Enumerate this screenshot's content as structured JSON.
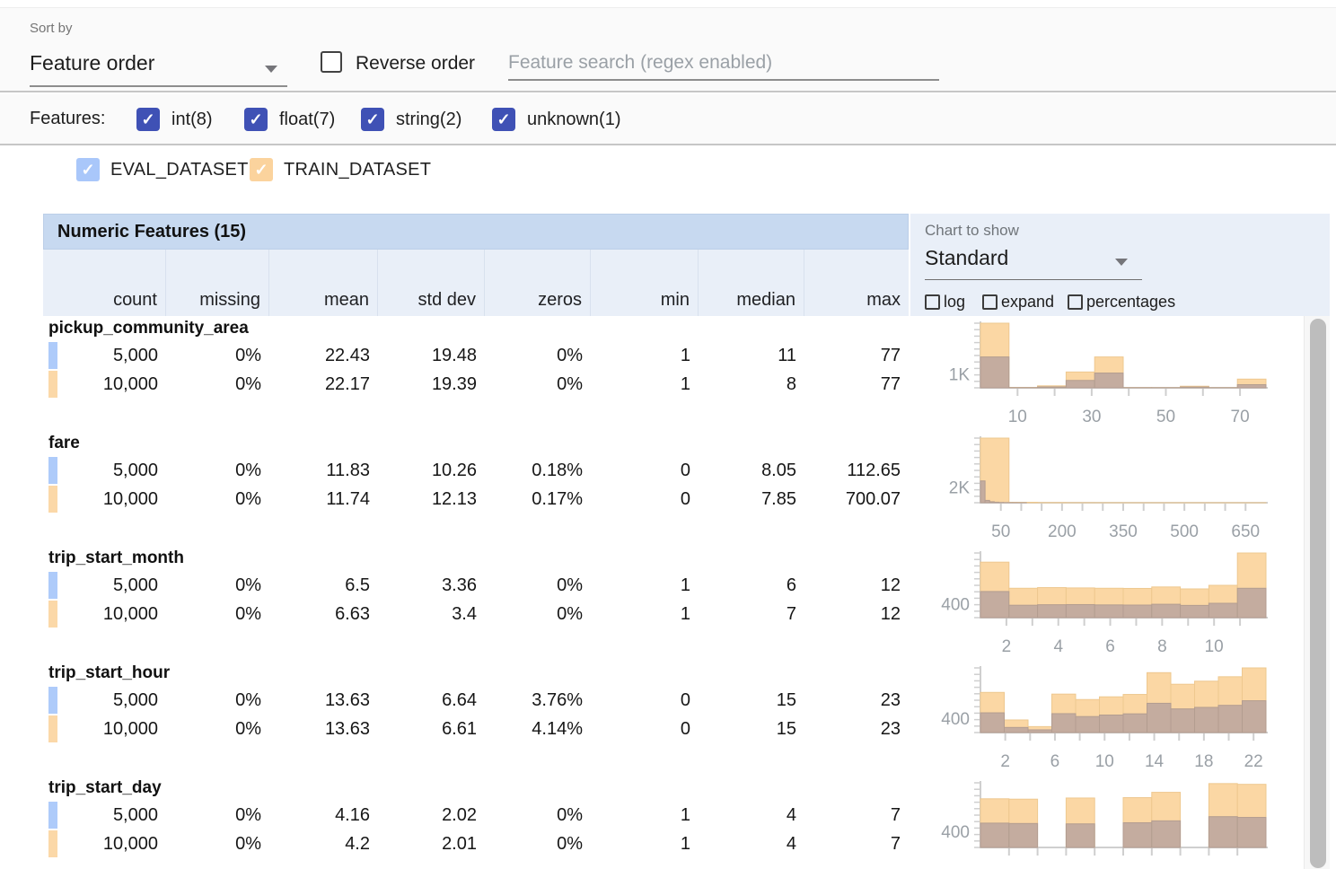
{
  "toolbar": {
    "sort_by_label": "Sort by",
    "sort_by_value": "Feature order",
    "reverse_order_label": "Reverse order",
    "search_placeholder": "Feature search (regex enabled)"
  },
  "features_filter": {
    "label": "Features:",
    "items": [
      {
        "label": "int(8)",
        "checked": true
      },
      {
        "label": "float(7)",
        "checked": true
      },
      {
        "label": "string(2)",
        "checked": true
      },
      {
        "label": "unknown(1)",
        "checked": true
      }
    ],
    "checkbox_color": "#3f51b5"
  },
  "datasets": [
    {
      "name": "EVAL_DATASET",
      "checked": true,
      "color": "#a9c7fa",
      "marker_color": "#aecbfa"
    },
    {
      "name": "TRAIN_DATASET",
      "checked": true,
      "color": "#fbd39d",
      "marker_color": "#fbd8a8"
    }
  ],
  "table": {
    "title": "Numeric Features (15)",
    "columns": [
      "count",
      "missing",
      "mean",
      "std dev",
      "zeros",
      "min",
      "median",
      "max"
    ],
    "chart_controls": {
      "label": "Chart to show",
      "selected": "Standard",
      "checkboxes": [
        {
          "label": "log",
          "checked": false
        },
        {
          "label": "expand",
          "checked": false
        },
        {
          "label": "percentages",
          "checked": false
        }
      ]
    },
    "features": [
      {
        "name": "pickup_community_area",
        "rows": [
          {
            "dataset": "EVAL_DATASET",
            "values": [
              "5,000",
              "0%",
              "22.43",
              "19.48",
              "0%",
              "1",
              "11",
              "77"
            ]
          },
          {
            "dataset": "TRAIN_DATASET",
            "values": [
              "10,000",
              "0%",
              "22.17",
              "19.39",
              "0%",
              "1",
              "8",
              "77"
            ]
          }
        ]
      },
      {
        "name": "fare",
        "rows": [
          {
            "dataset": "EVAL_DATASET",
            "values": [
              "5,000",
              "0%",
              "11.83",
              "10.26",
              "0.18%",
              "0",
              "8.05",
              "112.65"
            ]
          },
          {
            "dataset": "TRAIN_DATASET",
            "values": [
              "10,000",
              "0%",
              "11.74",
              "12.13",
              "0.17%",
              "0",
              "7.85",
              "700.07"
            ]
          }
        ]
      },
      {
        "name": "trip_start_month",
        "rows": [
          {
            "dataset": "EVAL_DATASET",
            "values": [
              "5,000",
              "0%",
              "6.5",
              "3.36",
              "0%",
              "1",
              "6",
              "12"
            ]
          },
          {
            "dataset": "TRAIN_DATASET",
            "values": [
              "10,000",
              "0%",
              "6.63",
              "3.4",
              "0%",
              "1",
              "7",
              "12"
            ]
          }
        ]
      },
      {
        "name": "trip_start_hour",
        "rows": [
          {
            "dataset": "EVAL_DATASET",
            "values": [
              "5,000",
              "0%",
              "13.63",
              "6.64",
              "3.76%",
              "0",
              "15",
              "23"
            ]
          },
          {
            "dataset": "TRAIN_DATASET",
            "values": [
              "10,000",
              "0%",
              "13.63",
              "6.61",
              "4.14%",
              "0",
              "15",
              "23"
            ]
          }
        ]
      },
      {
        "name": "trip_start_day",
        "rows": [
          {
            "dataset": "EVAL_DATASET",
            "values": [
              "5,000",
              "0%",
              "4.16",
              "2.02",
              "0%",
              "1",
              "4",
              "7"
            ]
          },
          {
            "dataset": "TRAIN_DATASET",
            "values": [
              "10,000",
              "0%",
              "4.2",
              "2.01",
              "0%",
              "1",
              "4",
              "7"
            ]
          }
        ]
      }
    ]
  },
  "chart_data": [
    {
      "type": "histogram",
      "feature": "pickup_community_area",
      "x_domain": [
        0,
        77
      ],
      "y_max": 4900,
      "y_axis_label": {
        "text": "1K",
        "value": 1000
      },
      "x_ticks_minor": [
        10,
        20,
        30,
        40,
        50,
        60,
        70
      ],
      "x_ticks_labeled": [
        10,
        30,
        50,
        70
      ],
      "series": [
        {
          "name": "TRAIN_DATASET",
          "color": "#fbd7a4",
          "stroke": "#eec88f",
          "bin_start": 0,
          "bin_width": 7.7,
          "values": [
            4900,
            30,
            150,
            1200,
            2340,
            20,
            15,
            120,
            15,
            660
          ]
        },
        {
          "name": "EVAL_DATASET",
          "color": "#c4ac9f",
          "stroke": "#b39d90",
          "bin_start": 0,
          "bin_width": 7.7,
          "values": [
            2340,
            15,
            70,
            560,
            1120,
            10,
            8,
            60,
            8,
            240
          ]
        }
      ]
    },
    {
      "type": "histogram",
      "feature": "fare",
      "x_domain": [
        0,
        700
      ],
      "y_max": 8600,
      "y_axis_label": {
        "text": "2K",
        "value": 2000
      },
      "x_ticks_minor": [
        50,
        100,
        150,
        200,
        250,
        300,
        350,
        400,
        450,
        500,
        550,
        600,
        650
      ],
      "x_ticks_labeled": [
        50,
        200,
        350,
        500,
        650
      ],
      "series": [
        {
          "name": "TRAIN_DATASET",
          "color": "#fbd7a4",
          "stroke": "#eec88f",
          "bin_start": 0,
          "bin_width": 70,
          "values": [
            8600,
            60,
            25,
            12,
            8,
            5,
            4,
            3,
            3,
            2
          ]
        },
        {
          "name": "EVAL_DATASET",
          "color": "#c4ac9f",
          "stroke": "#b39d90",
          "bin_start": 0,
          "bin_width": 11.265,
          "values": [
            2900,
            310,
            130,
            70,
            40,
            25,
            15,
            10,
            6,
            4
          ]
        }
      ]
    },
    {
      "type": "histogram",
      "feature": "trip_start_month",
      "x_domain": [
        1,
        12
      ],
      "y_max": 1980,
      "y_axis_label": {
        "text": "400",
        "value": 400
      },
      "x_ticks_minor": [
        2,
        3,
        4,
        5,
        6,
        7,
        8,
        9,
        10,
        11
      ],
      "x_ticks_labeled": [
        2,
        4,
        6,
        8,
        10
      ],
      "series": [
        {
          "name": "TRAIN_DATASET",
          "color": "#fbd7a4",
          "stroke": "#eec88f",
          "bin_start": 1,
          "bin_width": 1.1,
          "values": [
            1700,
            900,
            920,
            910,
            900,
            895,
            940,
            880,
            990,
            1980
          ]
        },
        {
          "name": "EVAL_DATASET",
          "color": "#c4ac9f",
          "stroke": "#b39d90",
          "bin_start": 1,
          "bin_width": 1.1,
          "values": [
            800,
            380,
            395,
            400,
            390,
            385,
            410,
            375,
            440,
            900
          ]
        }
      ]
    },
    {
      "type": "histogram",
      "feature": "trip_start_hour",
      "x_domain": [
        0,
        23
      ],
      "y_max": 1900,
      "y_axis_label": {
        "text": "400",
        "value": 400
      },
      "x_ticks_minor": [
        2,
        4,
        6,
        8,
        10,
        12,
        14,
        16,
        18,
        20,
        22
      ],
      "x_ticks_labeled": [
        2,
        6,
        10,
        14,
        18,
        22
      ],
      "series": [
        {
          "name": "TRAIN_DATASET",
          "color": "#fbd7a4",
          "stroke": "#eec88f",
          "bin_start": 0,
          "bin_width": 1.9167,
          "values": [
            1180,
            370,
            175,
            1130,
            970,
            1050,
            1120,
            1760,
            1420,
            1510,
            1640,
            1900
          ]
        },
        {
          "name": "EVAL_DATASET",
          "color": "#c4ac9f",
          "stroke": "#b39d90",
          "bin_start": 0,
          "bin_width": 1.9167,
          "values": [
            580,
            150,
            80,
            555,
            470,
            515,
            550,
            860,
            695,
            740,
            800,
            935
          ]
        }
      ]
    },
    {
      "type": "histogram",
      "feature": "trip_start_day",
      "x_domain": [
        1,
        7
      ],
      "y_max": 1700,
      "y_axis_label": {
        "text": "400",
        "value": 400
      },
      "x_ticks_minor": [
        1.6,
        2.2,
        2.8,
        3.4,
        4,
        4.6,
        5.2,
        5.8,
        6.4
      ],
      "x_ticks_labeled": [],
      "series": [
        {
          "name": "TRAIN_DATASET",
          "color": "#fbd7a4",
          "stroke": "#eec88f",
          "bin_start": 1,
          "bin_width": 0.6,
          "values": [
            1280,
            1270,
            0,
            1300,
            0,
            1310,
            1450,
            0,
            1680,
            1660
          ]
        },
        {
          "name": "EVAL_DATASET",
          "color": "#c4ac9f",
          "stroke": "#b39d90",
          "bin_start": 1,
          "bin_width": 0.6,
          "values": [
            640,
            630,
            0,
            620,
            0,
            650,
            700,
            0,
            810,
            790
          ]
        }
      ]
    }
  ]
}
